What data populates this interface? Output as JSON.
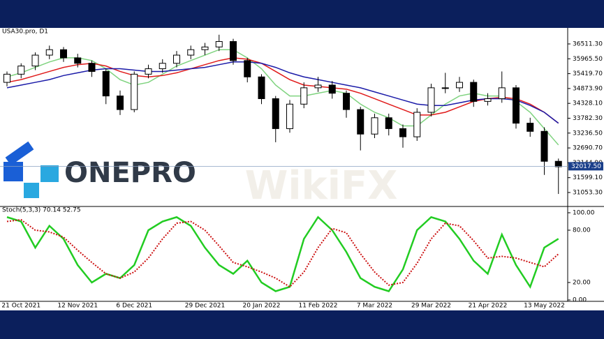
{
  "chart_data": [
    {
      "type": "candlestick",
      "title": "USA30.pro, D1",
      "categories": [
        null,
        "21 Oct 2021",
        null,
        null,
        null,
        "12 Nov 2021",
        null,
        null,
        null,
        "6 Dec 2021",
        null,
        null,
        null,
        null,
        "29 Dec 2021",
        null,
        null,
        null,
        "20 Jan 2022",
        null,
        null,
        null,
        "11 Feb 2022",
        null,
        null,
        null,
        "7 Mar 2022",
        null,
        null,
        null,
        "29 Mar 2022",
        null,
        null,
        null,
        "21 Apr 2022",
        null,
        null,
        null,
        "13 May 2022",
        null
      ],
      "open": [
        35100,
        35400,
        35700,
        36100,
        36300,
        36000,
        35800,
        35500,
        34600,
        34100,
        35400,
        35600,
        35800,
        36100,
        36300,
        36400,
        36600,
        35900,
        35300,
        34500,
        33400,
        34300,
        34900,
        35000,
        34700,
        34100,
        33200,
        33800,
        33400,
        33100,
        34000,
        34900,
        34900,
        35100,
        34400,
        34500,
        34900,
        33600,
        33300,
        32200
      ],
      "high": [
        35500,
        35800,
        36200,
        36450,
        36400,
        36150,
        35900,
        35600,
        34800,
        35500,
        35750,
        35950,
        36250,
        36450,
        36550,
        36850,
        36700,
        36000,
        35400,
        34600,
        34450,
        35100,
        35300,
        35150,
        34800,
        34200,
        33950,
        33950,
        33550,
        34150,
        35050,
        35450,
        35300,
        35200,
        34700,
        35500,
        35000,
        33800,
        33450,
        32300
      ],
      "low": [
        34950,
        35250,
        35550,
        35950,
        35850,
        35650,
        35300,
        34300,
        33900,
        34000,
        35250,
        35450,
        35650,
        35950,
        36100,
        36250,
        35750,
        35100,
        34300,
        32900,
        33250,
        34150,
        34750,
        34500,
        33800,
        32600,
        33050,
        33150,
        32700,
        32950,
        33850,
        34700,
        34750,
        34200,
        34250,
        34350,
        33400,
        33100,
        31700,
        31000
      ],
      "close": [
        35400,
        35700,
        36100,
        36300,
        36000,
        35800,
        35500,
        34600,
        34100,
        35400,
        35600,
        35800,
        36100,
        36300,
        36400,
        36600,
        35900,
        35300,
        34500,
        33400,
        34300,
        34900,
        35000,
        34700,
        34100,
        33200,
        33800,
        33400,
        33100,
        34000,
        34900,
        34900,
        35100,
        34400,
        34500,
        34900,
        33600,
        33300,
        32200,
        32000
      ],
      "up_color": "#ffffff",
      "down_color": "#000000",
      "series": [
        {
          "color": "#7fd37f",
          "values": [
            35300,
            35450,
            35650,
            35850,
            36000,
            36000,
            35900,
            35600,
            35200,
            35000,
            35100,
            35400,
            35700,
            35900,
            36100,
            36300,
            36300,
            36000,
            35600,
            35000,
            34600,
            34600,
            34700,
            34800,
            34700,
            34300,
            34000,
            33800,
            33500,
            33500,
            33900,
            34300,
            34600,
            34700,
            34600,
            34600,
            34400,
            34000,
            33400,
            32800
          ]
        },
        {
          "color": "#e01b1b",
          "values": [
            35100,
            35200,
            35350,
            35500,
            35650,
            35750,
            35800,
            35700,
            35500,
            35350,
            35300,
            35350,
            35450,
            35600,
            35750,
            35900,
            36000,
            35950,
            35800,
            35500,
            35200,
            35000,
            34950,
            34900,
            34850,
            34700,
            34500,
            34300,
            34100,
            33900,
            33900,
            34000,
            34200,
            34400,
            34500,
            34550,
            34500,
            34300,
            34000,
            33600
          ]
        },
        {
          "color": "#1a1aa8",
          "values": [
            34900,
            35000,
            35100,
            35200,
            35350,
            35450,
            35550,
            35600,
            35600,
            35550,
            35500,
            35500,
            35550,
            35600,
            35650,
            35750,
            35850,
            35850,
            35800,
            35650,
            35450,
            35300,
            35200,
            35100,
            35000,
            34900,
            34750,
            34600,
            34450,
            34300,
            34250,
            34250,
            34350,
            34450,
            34500,
            34500,
            34450,
            34250,
            34000,
            33600
          ]
        }
      ],
      "last_price": {
        "value": 32017.5,
        "label": "32017.50"
      },
      "ylim": [
        30566,
        37049
      ],
      "yticks": [
        {
          "value": 36511.3,
          "label": "36511.30"
        },
        {
          "value": 35965.5,
          "label": "35965.50"
        },
        {
          "value": 35419.7,
          "label": "35419.70"
        },
        {
          "value": 34873.9,
          "label": "34873.90"
        },
        {
          "value": 34328.1,
          "label": "34328.10"
        },
        {
          "value": 33782.3,
          "label": "33782.30"
        },
        {
          "value": 33236.5,
          "label": "33236.50"
        },
        {
          "value": 32690.7,
          "label": "32690.70"
        },
        {
          "value": 32144.9,
          "label": "32144.90"
        },
        {
          "value": 31599.1,
          "label": "31599.10"
        },
        {
          "value": 31053.3,
          "label": "31053.30"
        }
      ]
    },
    {
      "type": "line",
      "title": "Stoch(5,3,3) 70.14 52.75",
      "series": [
        {
          "color": "#22cc22",
          "values": [
            95,
            90,
            60,
            85,
            70,
            40,
            20,
            30,
            25,
            40,
            80,
            90,
            95,
            85,
            60,
            40,
            30,
            45,
            20,
            10,
            15,
            70,
            95,
            80,
            55,
            25,
            15,
            10,
            35,
            80,
            95,
            90,
            70,
            45,
            30,
            75,
            40,
            15,
            60,
            70.14
          ]
        },
        {
          "color": "#cc1111",
          "values": [
            90,
            92,
            80,
            78,
            72,
            57,
            43,
            30,
            25,
            32,
            48,
            70,
            88,
            90,
            80,
            62,
            43,
            38,
            32,
            25,
            15,
            32,
            60,
            82,
            77,
            53,
            32,
            17,
            20,
            42,
            70,
            88,
            85,
            68,
            48,
            50,
            48,
            43,
            38,
            52.75
          ]
        }
      ],
      "ylim": [
        0,
        100
      ],
      "yticks": [
        {
          "value": 100,
          "label": "100.00"
        },
        {
          "value": 80,
          "label": "80.00"
        },
        {
          "value": 20,
          "label": "20.00"
        },
        {
          "value": 0,
          "label": "0.00"
        }
      ]
    }
  ],
  "logo": "ONEPRO",
  "watermark": "WikiFX"
}
